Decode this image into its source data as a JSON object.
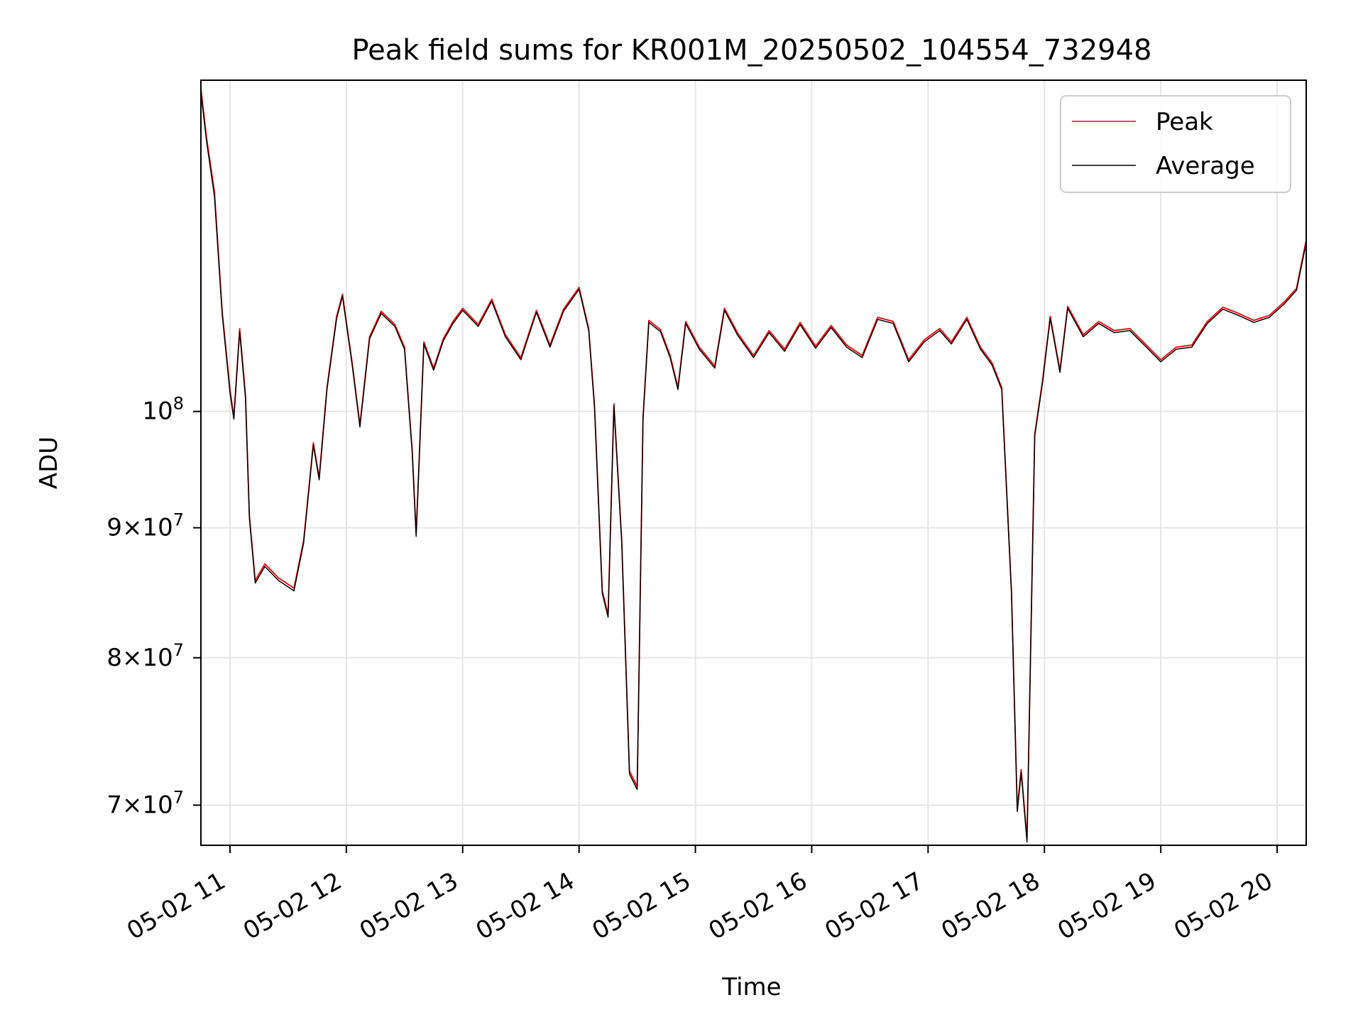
{
  "chart_data": {
    "type": "line",
    "title": "Peak field sums for KR001M_20250502_104554_732948",
    "xlabel": "Time",
    "ylabel": "ADU",
    "yscale": "log",
    "grid": true,
    "legend_placement": "top-right",
    "xlim": [
      "2025-05-02 10:45",
      "2025-05-02 20:15"
    ],
    "ylim": [
      67500000,
      135000000
    ],
    "x_ticks": [
      {
        "value": "2025-05-02 11:00",
        "label": "05-02 11"
      },
      {
        "value": "2025-05-02 12:00",
        "label": "05-02 12"
      },
      {
        "value": "2025-05-02 13:00",
        "label": "05-02 13"
      },
      {
        "value": "2025-05-02 14:00",
        "label": "05-02 14"
      },
      {
        "value": "2025-05-02 15:00",
        "label": "05-02 15"
      },
      {
        "value": "2025-05-02 16:00",
        "label": "05-02 16"
      },
      {
        "value": "2025-05-02 17:00",
        "label": "05-02 17"
      },
      {
        "value": "2025-05-02 18:00",
        "label": "05-02 18"
      },
      {
        "value": "2025-05-02 19:00",
        "label": "05-02 19"
      },
      {
        "value": "2025-05-02 20:00",
        "label": "05-02 20"
      }
    ],
    "y_ticks": [
      {
        "value": 70000000,
        "mantissa": "7",
        "exponent": "7"
      },
      {
        "value": 80000000,
        "mantissa": "8",
        "exponent": "7"
      },
      {
        "value": 90000000,
        "mantissa": "9",
        "exponent": "7"
      },
      {
        "value": 100000000,
        "mantissa": "",
        "exponent": "8"
      }
    ],
    "series": [
      {
        "name": "Peak",
        "color": "#ff0000",
        "points": [
          [
            "2025-05-02 10:45",
            107500000
          ],
          [
            "2025-05-02 10:45",
            134000000
          ],
          [
            "2025-05-02 10:48",
            128000000
          ],
          [
            "2025-05-02 10:52",
            122000000
          ],
          [
            "2025-05-02 10:56",
            109500000
          ],
          [
            "2025-05-02 11:00",
            102000000
          ],
          [
            "2025-05-02 11:02",
            99500000
          ],
          [
            "2025-05-02 11:05",
            107800000
          ],
          [
            "2025-05-02 11:08",
            101500000
          ],
          [
            "2025-05-02 11:10",
            91000000
          ],
          [
            "2025-05-02 11:13",
            85800000
          ],
          [
            "2025-05-02 11:18",
            87100000
          ],
          [
            "2025-05-02 11:25",
            86000000
          ],
          [
            "2025-05-02 11:33",
            85200000
          ],
          [
            "2025-05-02 11:38",
            89000000
          ],
          [
            "2025-05-02 11:43",
            97200000
          ],
          [
            "2025-05-02 11:46",
            94200000
          ],
          [
            "2025-05-02 11:50",
            102200000
          ],
          [
            "2025-05-02 11:55",
            109000000
          ],
          [
            "2025-05-02 11:58",
            111200000
          ],
          [
            "2025-05-02 12:03",
            104500000
          ],
          [
            "2025-05-02 12:07",
            98800000
          ],
          [
            "2025-05-02 12:12",
            107000000
          ],
          [
            "2025-05-02 12:18",
            109500000
          ],
          [
            "2025-05-02 12:25",
            108200000
          ],
          [
            "2025-05-02 12:30",
            106000000
          ],
          [
            "2025-05-02 12:34",
            96500000
          ],
          [
            "2025-05-02 12:36",
            89500000
          ],
          [
            "2025-05-02 12:40",
            106500000
          ],
          [
            "2025-05-02 12:45",
            104000000
          ],
          [
            "2025-05-02 12:50",
            106800000
          ],
          [
            "2025-05-02 12:55",
            108500000
          ],
          [
            "2025-05-02 13:00",
            109800000
          ],
          [
            "2025-05-02 13:08",
            108200000
          ],
          [
            "2025-05-02 13:15",
            110700000
          ],
          [
            "2025-05-02 13:22",
            107200000
          ],
          [
            "2025-05-02 13:30",
            105000000
          ],
          [
            "2025-05-02 13:38",
            109600000
          ],
          [
            "2025-05-02 13:45",
            106200000
          ],
          [
            "2025-05-02 13:52",
            109700000
          ],
          [
            "2025-05-02 14:00",
            111900000
          ],
          [
            "2025-05-02 14:05",
            107800000
          ],
          [
            "2025-05-02 14:08",
            100500000
          ],
          [
            "2025-05-02 14:12",
            85000000
          ],
          [
            "2025-05-02 14:15",
            83200000
          ],
          [
            "2025-05-02 14:18",
            100700000
          ],
          [
            "2025-05-02 14:22",
            89000000
          ],
          [
            "2025-05-02 14:26",
            72200000
          ],
          [
            "2025-05-02 14:30",
            71200000
          ],
          [
            "2025-05-02 14:33",
            99500000
          ],
          [
            "2025-05-02 14:36",
            108600000
          ],
          [
            "2025-05-02 14:42",
            107700000
          ],
          [
            "2025-05-02 14:47",
            105200000
          ],
          [
            "2025-05-02 14:51",
            102200000
          ],
          [
            "2025-05-02 14:55",
            108500000
          ],
          [
            "2025-05-02 15:02",
            106000000
          ],
          [
            "2025-05-02 15:10",
            104200000
          ],
          [
            "2025-05-02 15:15",
            109800000
          ],
          [
            "2025-05-02 15:22",
            107300000
          ],
          [
            "2025-05-02 15:30",
            105200000
          ],
          [
            "2025-05-02 15:38",
            107600000
          ],
          [
            "2025-05-02 15:46",
            105800000
          ],
          [
            "2025-05-02 15:54",
            108400000
          ],
          [
            "2025-05-02 16:02",
            106100000
          ],
          [
            "2025-05-02 16:10",
            108100000
          ],
          [
            "2025-05-02 16:18",
            106200000
          ],
          [
            "2025-05-02 16:26",
            105200000
          ],
          [
            "2025-05-02 16:34",
            108900000
          ],
          [
            "2025-05-02 16:42",
            108500000
          ],
          [
            "2025-05-02 16:50",
            104800000
          ],
          [
            "2025-05-02 16:58",
            106700000
          ],
          [
            "2025-05-02 17:06",
            107800000
          ],
          [
            "2025-05-02 17:12",
            106500000
          ],
          [
            "2025-05-02 17:20",
            108900000
          ],
          [
            "2025-05-02 17:27",
            106000000
          ],
          [
            "2025-05-02 17:33",
            104500000
          ],
          [
            "2025-05-02 17:38",
            102200000
          ],
          [
            "2025-05-02 17:43",
            85000000
          ],
          [
            "2025-05-02 17:46",
            69800000
          ],
          [
            "2025-05-02 17:48",
            72300000
          ],
          [
            "2025-05-02 17:51",
            67900000
          ],
          [
            "2025-05-02 17:55",
            98000000
          ],
          [
            "2025-05-02 17:59",
            102800000
          ],
          [
            "2025-05-02 18:03",
            109000000
          ],
          [
            "2025-05-02 18:08",
            103800000
          ],
          [
            "2025-05-02 18:12",
            110000000
          ],
          [
            "2025-05-02 18:20",
            107200000
          ],
          [
            "2025-05-02 18:28",
            108500000
          ],
          [
            "2025-05-02 18:36",
            107600000
          ],
          [
            "2025-05-02 18:44",
            107800000
          ],
          [
            "2025-05-02 18:52",
            106300000
          ],
          [
            "2025-05-02 19:00",
            104800000
          ],
          [
            "2025-05-02 19:08",
            106000000
          ],
          [
            "2025-05-02 19:16",
            106200000
          ],
          [
            "2025-05-02 19:24",
            108500000
          ],
          [
            "2025-05-02 19:32",
            109900000
          ],
          [
            "2025-05-02 19:40",
            109300000
          ],
          [
            "2025-05-02 19:48",
            108600000
          ],
          [
            "2025-05-02 19:56",
            109100000
          ],
          [
            "2025-05-02 20:04",
            110500000
          ],
          [
            "2025-05-02 20:10",
            111800000
          ],
          [
            "2025-05-02 20:15",
            116800000
          ]
        ]
      },
      {
        "name": "Average",
        "color": "#000000",
        "points": [
          [
            "2025-05-02 10:45",
            107000000
          ],
          [
            "2025-05-02 10:45",
            133500000
          ],
          [
            "2025-05-02 10:48",
            127600000
          ],
          [
            "2025-05-02 10:52",
            121500000
          ],
          [
            "2025-05-02 10:56",
            109200000
          ],
          [
            "2025-05-02 11:00",
            101700000
          ],
          [
            "2025-05-02 11:02",
            99300000
          ],
          [
            "2025-05-02 11:05",
            107500000
          ],
          [
            "2025-05-02 11:08",
            101200000
          ],
          [
            "2025-05-02 11:10",
            90800000
          ],
          [
            "2025-05-02 11:13",
            85600000
          ],
          [
            "2025-05-02 11:18",
            86900000
          ],
          [
            "2025-05-02 11:25",
            85800000
          ],
          [
            "2025-05-02 11:33",
            85000000
          ],
          [
            "2025-05-02 11:38",
            88800000
          ],
          [
            "2025-05-02 11:43",
            97000000
          ],
          [
            "2025-05-02 11:46",
            94000000
          ],
          [
            "2025-05-02 11:50",
            102000000
          ],
          [
            "2025-05-02 11:55",
            108800000
          ],
          [
            "2025-05-02 11:58",
            111000000
          ],
          [
            "2025-05-02 12:03",
            104300000
          ],
          [
            "2025-05-02 12:07",
            98600000
          ],
          [
            "2025-05-02 12:12",
            106800000
          ],
          [
            "2025-05-02 12:18",
            109300000
          ],
          [
            "2025-05-02 12:25",
            108000000
          ],
          [
            "2025-05-02 12:30",
            105800000
          ],
          [
            "2025-05-02 12:34",
            96300000
          ],
          [
            "2025-05-02 12:36",
            89300000
          ],
          [
            "2025-05-02 12:40",
            106300000
          ],
          [
            "2025-05-02 12:45",
            103800000
          ],
          [
            "2025-05-02 12:50",
            106600000
          ],
          [
            "2025-05-02 12:55",
            108300000
          ],
          [
            "2025-05-02 13:00",
            109600000
          ],
          [
            "2025-05-02 13:08",
            108000000
          ],
          [
            "2025-05-02 13:15",
            110500000
          ],
          [
            "2025-05-02 13:22",
            107000000
          ],
          [
            "2025-05-02 13:30",
            104800000
          ],
          [
            "2025-05-02 13:38",
            109400000
          ],
          [
            "2025-05-02 13:45",
            106000000
          ],
          [
            "2025-05-02 13:52",
            109500000
          ],
          [
            "2025-05-02 14:00",
            111700000
          ],
          [
            "2025-05-02 14:05",
            107600000
          ],
          [
            "2025-05-02 14:08",
            100300000
          ],
          [
            "2025-05-02 14:12",
            84800000
          ],
          [
            "2025-05-02 14:15",
            83000000
          ],
          [
            "2025-05-02 14:18",
            100500000
          ],
          [
            "2025-05-02 14:22",
            88800000
          ],
          [
            "2025-05-02 14:26",
            72000000
          ],
          [
            "2025-05-02 14:30",
            71000000
          ],
          [
            "2025-05-02 14:33",
            99300000
          ],
          [
            "2025-05-02 14:36",
            108400000
          ],
          [
            "2025-05-02 14:42",
            107500000
          ],
          [
            "2025-05-02 14:47",
            105000000
          ],
          [
            "2025-05-02 14:51",
            102000000
          ],
          [
            "2025-05-02 14:55",
            108300000
          ],
          [
            "2025-05-02 15:02",
            105800000
          ],
          [
            "2025-05-02 15:10",
            104000000
          ],
          [
            "2025-05-02 15:15",
            109600000
          ],
          [
            "2025-05-02 15:22",
            107100000
          ],
          [
            "2025-05-02 15:30",
            105000000
          ],
          [
            "2025-05-02 15:38",
            107400000
          ],
          [
            "2025-05-02 15:46",
            105600000
          ],
          [
            "2025-05-02 15:54",
            108200000
          ],
          [
            "2025-05-02 16:02",
            105900000
          ],
          [
            "2025-05-02 16:10",
            107900000
          ],
          [
            "2025-05-02 16:18",
            106000000
          ],
          [
            "2025-05-02 16:26",
            105000000
          ],
          [
            "2025-05-02 16:34",
            108700000
          ],
          [
            "2025-05-02 16:42",
            108300000
          ],
          [
            "2025-05-02 16:50",
            104600000
          ],
          [
            "2025-05-02 16:58",
            106500000
          ],
          [
            "2025-05-02 17:06",
            107600000
          ],
          [
            "2025-05-02 17:12",
            106300000
          ],
          [
            "2025-05-02 17:20",
            108700000
          ],
          [
            "2025-05-02 17:27",
            105800000
          ],
          [
            "2025-05-02 17:33",
            104300000
          ],
          [
            "2025-05-02 17:38",
            102000000
          ],
          [
            "2025-05-02 17:43",
            84800000
          ],
          [
            "2025-05-02 17:46",
            69600000
          ],
          [
            "2025-05-02 17:48",
            72100000
          ],
          [
            "2025-05-02 17:51",
            67700000
          ],
          [
            "2025-05-02 17:55",
            97800000
          ],
          [
            "2025-05-02 17:59",
            102600000
          ],
          [
            "2025-05-02 18:03",
            108800000
          ],
          [
            "2025-05-02 18:08",
            103600000
          ],
          [
            "2025-05-02 18:12",
            109800000
          ],
          [
            "2025-05-02 18:20",
            107000000
          ],
          [
            "2025-05-02 18:28",
            108300000
          ],
          [
            "2025-05-02 18:36",
            107400000
          ],
          [
            "2025-05-02 18:44",
            107600000
          ],
          [
            "2025-05-02 18:52",
            106100000
          ],
          [
            "2025-05-02 19:00",
            104600000
          ],
          [
            "2025-05-02 19:08",
            105800000
          ],
          [
            "2025-05-02 19:16",
            106000000
          ],
          [
            "2025-05-02 19:24",
            108300000
          ],
          [
            "2025-05-02 19:32",
            109700000
          ],
          [
            "2025-05-02 19:40",
            109100000
          ],
          [
            "2025-05-02 19:48",
            108400000
          ],
          [
            "2025-05-02 19:56",
            108900000
          ],
          [
            "2025-05-02 20:04",
            110300000
          ],
          [
            "2025-05-02 20:10",
            111600000
          ],
          [
            "2025-05-02 20:15",
            116500000
          ]
        ]
      }
    ]
  }
}
